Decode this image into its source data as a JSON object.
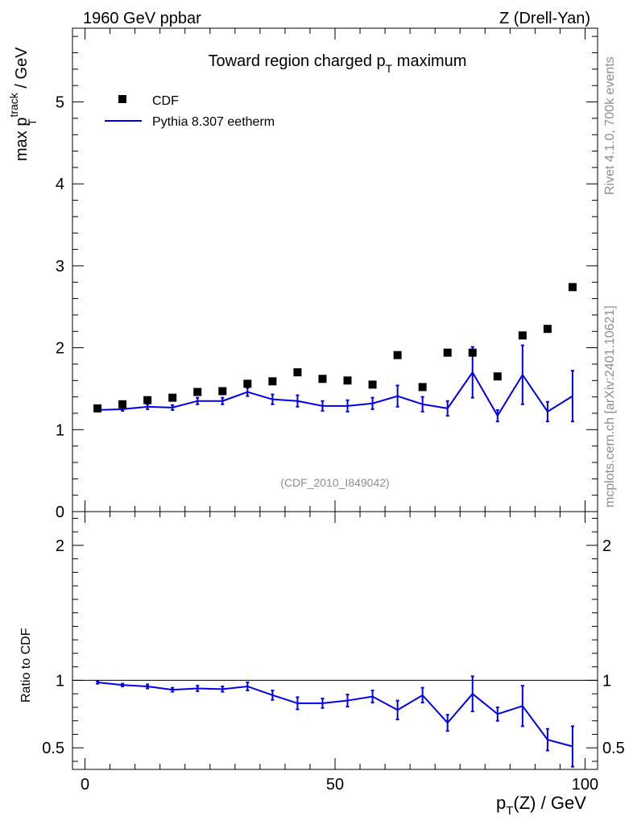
{
  "header": {
    "left": "1960 GeV ppbar",
    "right": "Z (Drell-Yan)"
  },
  "side": {
    "rivet": "Rivet 4.1.0,  700k events",
    "mcplots": "mcplots.cern.ch [arXiv:2401.10621]"
  },
  "chart_data": {
    "type": "scatter",
    "title_main": "Toward region charged p",
    "title_sub": "T",
    "title_tail": " maximum",
    "analysis_label": "(CDF_2010_I849042)",
    "ylabel": {
      "pre": "max p",
      "sup": "track",
      "sub": "T",
      "post": " / GeV"
    },
    "xlabel": {
      "pre": "p",
      "sub": "T",
      "post": "(Z) / GeV"
    },
    "ratio_ylabel": "Ratio to CDF",
    "xlim": [
      -2.5,
      102.5
    ],
    "ylim": [
      0,
      5.9
    ],
    "ratio_ylim": [
      0.34,
      2.25
    ],
    "x_ticks": [
      {
        "v": 0,
        "label": "0"
      },
      {
        "v": 50,
        "label": "50"
      },
      {
        "v": 100,
        "label": "100"
      }
    ],
    "y_ticks": [
      {
        "v": 0,
        "label": "0"
      },
      {
        "v": 1,
        "label": "1"
      },
      {
        "v": 2,
        "label": "2"
      },
      {
        "v": 3,
        "label": "3"
      },
      {
        "v": 4,
        "label": "4"
      },
      {
        "v": 5,
        "label": "5"
      }
    ],
    "ratio_ticks": [
      {
        "v": 0.5,
        "label": "0.5"
      },
      {
        "v": 1,
        "label": "1"
      },
      {
        "v": 2,
        "label": "2"
      }
    ],
    "legend": [
      {
        "name": "CDF",
        "kind": "marker",
        "color": "#000000"
      },
      {
        "name": "Pythia 8.307 eetherm",
        "kind": "line",
        "color": "#0000ee"
      }
    ],
    "x": [
      2.5,
      7.5,
      12.5,
      17.5,
      22.5,
      27.5,
      32.5,
      37.5,
      42.5,
      47.5,
      52.5,
      57.5,
      62.5,
      67.5,
      72.5,
      77.5,
      82.5,
      87.5,
      92.5,
      97.5
    ],
    "series": [
      {
        "name": "CDF",
        "values": [
          1.26,
          1.31,
          1.36,
          1.39,
          1.46,
          1.47,
          1.56,
          1.59,
          1.7,
          1.62,
          1.6,
          1.55,
          1.91,
          1.52,
          1.94,
          1.94,
          1.65,
          2.15,
          2.23,
          2.74
        ]
      },
      {
        "name": "Pythia 8.307 eetherm",
        "values": [
          1.24,
          1.25,
          1.28,
          1.27,
          1.35,
          1.35,
          1.46,
          1.37,
          1.35,
          1.29,
          1.29,
          1.32,
          1.41,
          1.31,
          1.26,
          1.7,
          1.17,
          1.67,
          1.22,
          1.41
        ],
        "errors": [
          0.02,
          0.02,
          0.03,
          0.03,
          0.04,
          0.04,
          0.05,
          0.06,
          0.07,
          0.06,
          0.07,
          0.07,
          0.13,
          0.09,
          0.09,
          0.31,
          0.07,
          0.36,
          0.12,
          0.31
        ]
      }
    ],
    "ratio": {
      "values": [
        0.985,
        0.965,
        0.955,
        0.93,
        0.94,
        0.935,
        0.955,
        0.89,
        0.83,
        0.83,
        0.85,
        0.88,
        0.78,
        0.89,
        0.685,
        0.9,
        0.75,
        0.81,
        0.56,
        0.51
      ],
      "errors": [
        0.01,
        0.01,
        0.015,
        0.015,
        0.02,
        0.02,
        0.03,
        0.035,
        0.045,
        0.035,
        0.045,
        0.045,
        0.07,
        0.055,
        0.06,
        0.13,
        0.05,
        0.15,
        0.08,
        0.15
      ]
    }
  }
}
